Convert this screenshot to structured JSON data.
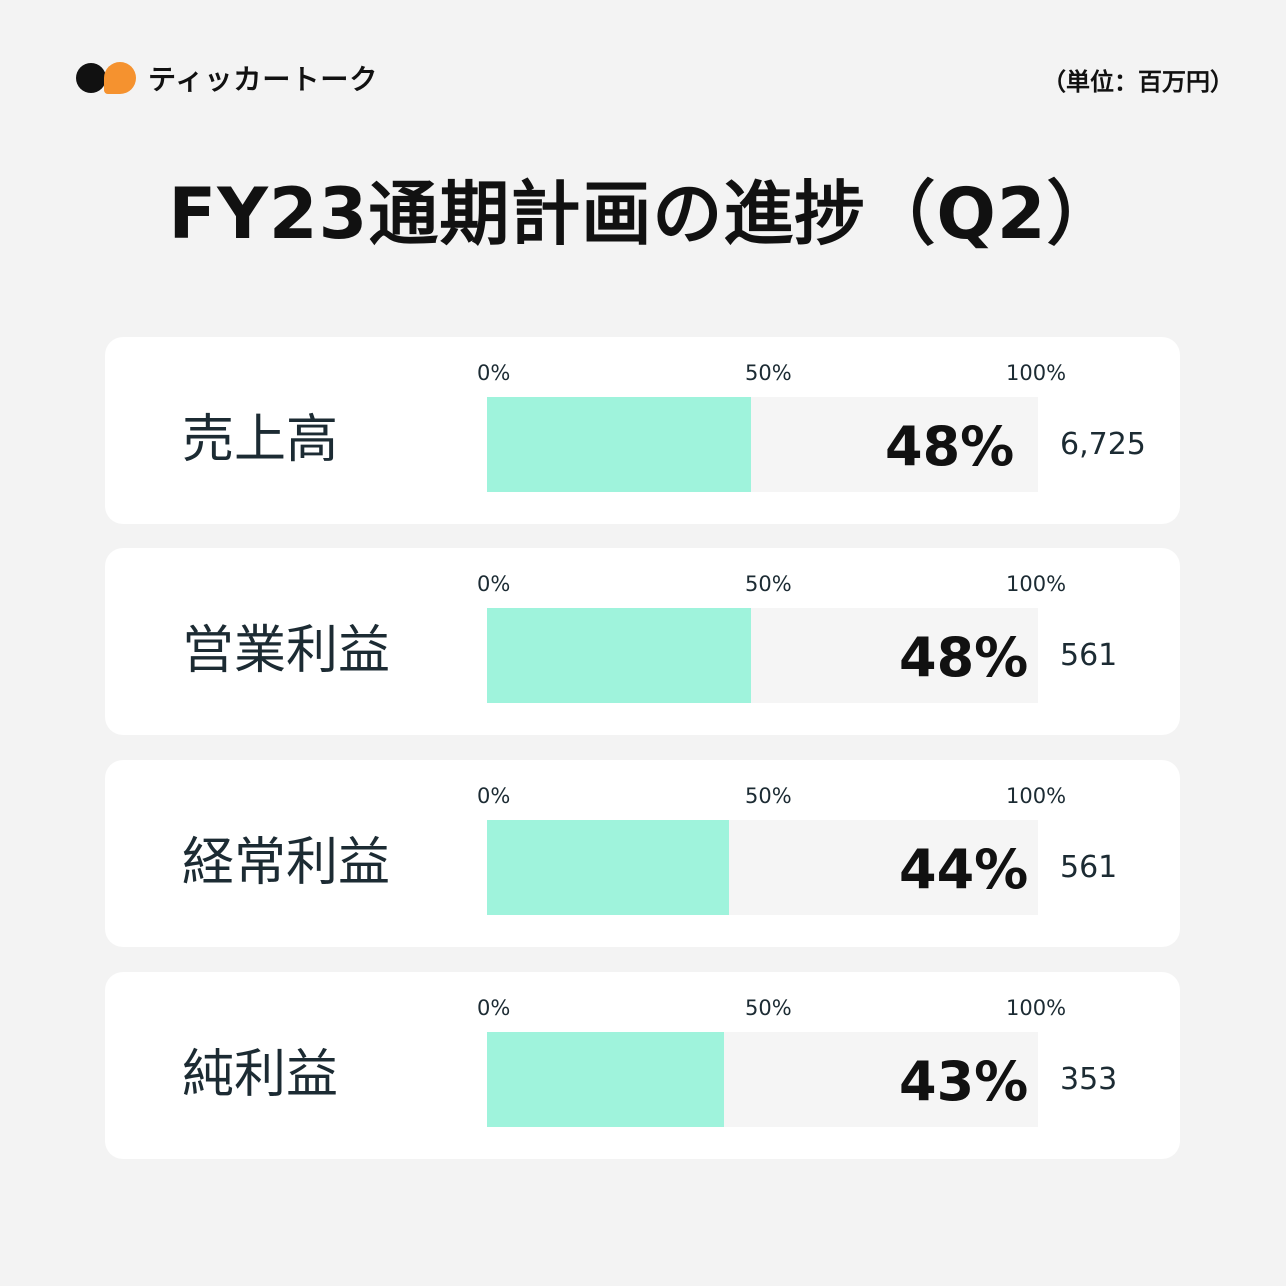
{
  "brand": {
    "name": "ティッカートーク",
    "colors": {
      "dark": "#111111",
      "accent": "#f5922f"
    }
  },
  "unit_label": "（単位：百万円）",
  "title": "FY23通期計画の進捗（Q2）",
  "chart_data": {
    "type": "bar",
    "orientation": "horizontal",
    "title": "FY23通期計画の進捗（Q2）",
    "unit": "（単位：百万円）",
    "xlim": [
      0,
      100
    ],
    "ticks": [
      "0%",
      "50%",
      "100%"
    ],
    "fill_color": "#9ff3dc",
    "track_color": "#f5f5f5",
    "categories": [
      "売上高",
      "営業利益",
      "経常利益",
      "純利益"
    ],
    "values": [
      48,
      48,
      44,
      43
    ],
    "value_labels": [
      "48%",
      "48%",
      "44%",
      "43%"
    ],
    "amounts": [
      "6,725",
      "561",
      "561",
      "353"
    ]
  }
}
